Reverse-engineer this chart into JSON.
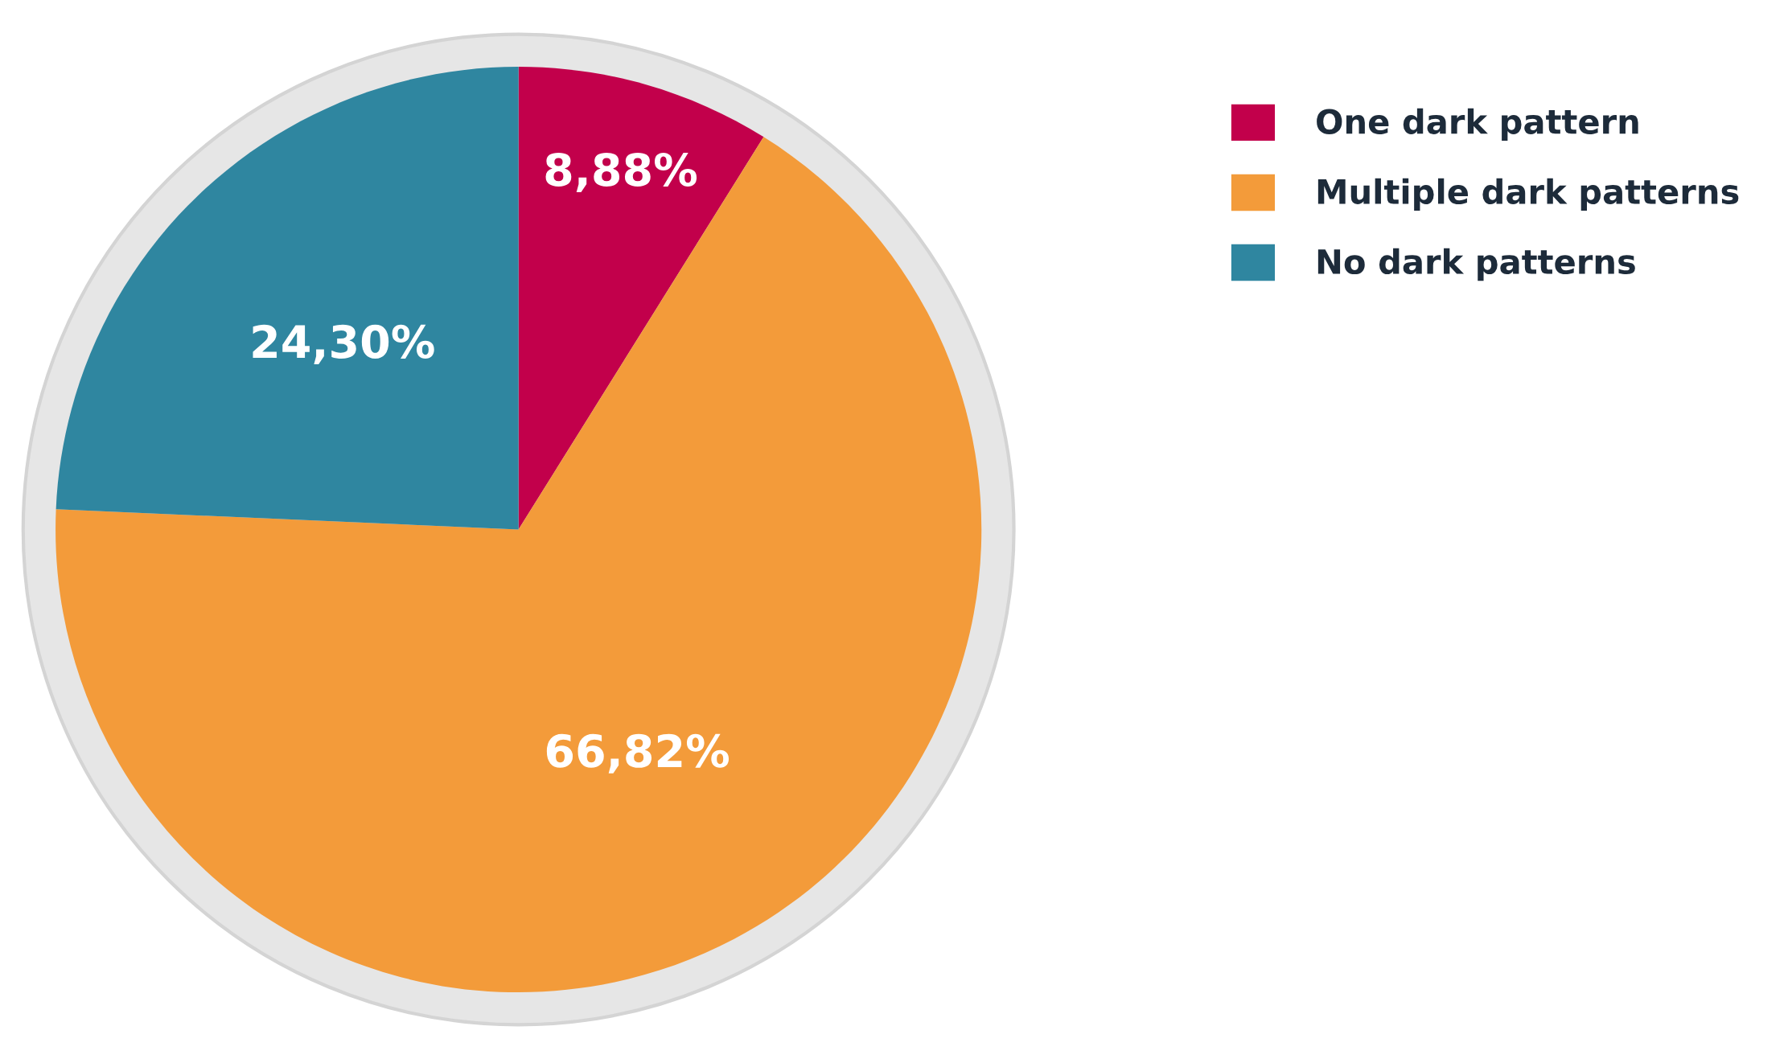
{
  "chart_data": {
    "type": "pie",
    "categories": [
      "One dark pattern",
      "Multiple dark patterns",
      "No dark patterns"
    ],
    "values": [
      8.88,
      66.82,
      24.3
    ],
    "value_labels": [
      "8,88%",
      "66,82%",
      "24,30%"
    ],
    "colors": [
      "#c2004b",
      "#f39b3a",
      "#2f86a0"
    ],
    "legend": "top right"
  }
}
